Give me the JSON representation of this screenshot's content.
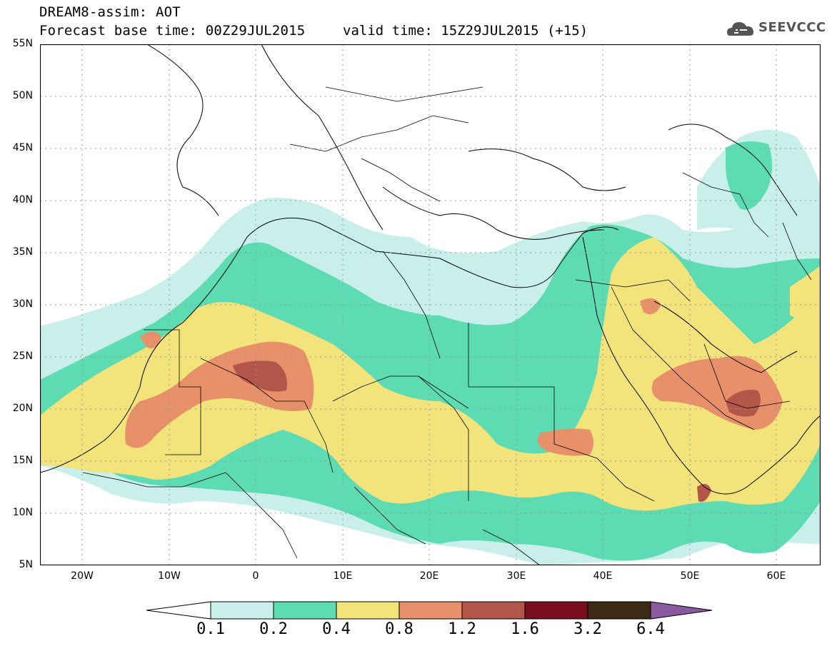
{
  "header": {
    "title_line1": "DREAM8-assim: AOT",
    "title_line2": "Forecast base time: 00Z29JUL2015",
    "valid_time": "valid time: 15Z29JUL2015 (+15)",
    "logo_text": "SEEVCCC"
  },
  "map": {
    "lat_labels": [
      "55N",
      "50N",
      "45N",
      "40N",
      "35N",
      "30N",
      "25N",
      "20N",
      "15N",
      "10N",
      "5N"
    ],
    "lon_labels": [
      "20W",
      "10W",
      "0",
      "10E",
      "20E",
      "30E",
      "40E",
      "50E",
      "60E"
    ],
    "lat_range": [
      5,
      55
    ],
    "lon_range": [
      -25,
      65
    ],
    "grid": "dotted"
  },
  "legend": {
    "levels": [
      "0.1",
      "0.2",
      "0.4",
      "0.8",
      "1.2",
      "1.6",
      "3.2",
      "6.4"
    ],
    "colors": [
      "#c8efe9",
      "#5ddbb2",
      "#f2e47a",
      "#e8906a",
      "#b4554a",
      "#7a0e1e",
      "#3d2a14",
      "#8a5aa0"
    ]
  }
}
